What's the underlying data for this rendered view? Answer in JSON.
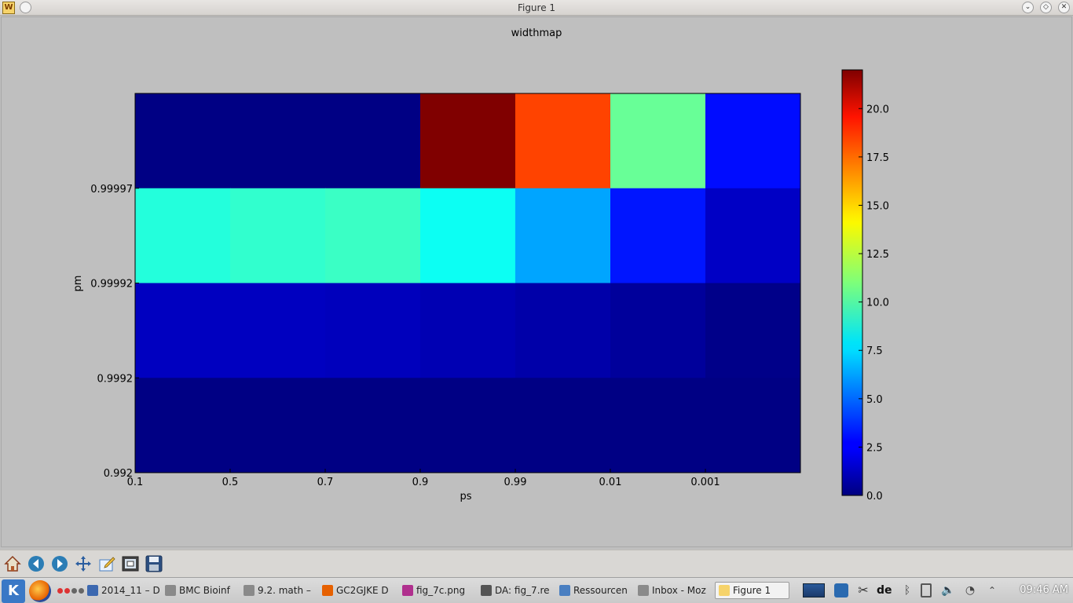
{
  "window": {
    "title": "Figure 1",
    "app_icon_glyph": "W"
  },
  "chart_data": {
    "type": "heatmap",
    "title": "widthmap",
    "xlabel": "ps",
    "ylabel": "pm",
    "x_ticks": [
      "0.1",
      "0.5",
      "0.7",
      "0.9",
      "0.99",
      "0.01",
      "0.001"
    ],
    "y_ticks_bottom_to_top": [
      "0.992",
      "0.9992",
      "0.99992",
      "0.99997"
    ],
    "colorbar": {
      "min": 0.0,
      "max": 22.0,
      "ticks": [
        "0.0",
        "2.5",
        "5.0",
        "7.5",
        "10.0",
        "12.5",
        "15.0",
        "17.5",
        "20.0"
      ],
      "colormap": "jet"
    },
    "rows_top_to_bottom": [
      [
        0.1,
        0.1,
        0.1,
        22.0,
        17.8,
        10.5,
        3.0
      ],
      [
        9.0,
        9.3,
        9.5,
        8.5,
        6.3,
        3.2,
        1.5
      ],
      [
        1.4,
        1.4,
        1.3,
        1.1,
        0.9,
        0.6,
        0.2
      ],
      [
        0.1,
        0.1,
        0.1,
        0.1,
        0.1,
        0.1,
        0.1
      ]
    ]
  },
  "toolbar": {
    "tools": [
      "home-icon",
      "back-arrow-icon",
      "forward-arrow-icon",
      "pan-icon",
      "configure-subplots-icon",
      "zoom-rect-icon",
      "save-icon"
    ]
  },
  "taskbar": {
    "items": [
      {
        "label": "2014_11 – D",
        "icon": "document-icon",
        "color": "#3c68b0"
      },
      {
        "label": "BMC Bioinf",
        "icon": "browser-tab-icon",
        "color": "#8a8a8a"
      },
      {
        "label": "9.2. math –",
        "icon": "browser-tab-icon",
        "color": "#8a8a8a"
      },
      {
        "label": "GC2GJKE D",
        "icon": "firefox-icon",
        "color": "#e66000"
      },
      {
        "label": "fig_7c.png",
        "icon": "image-viewer-icon",
        "color": "#b0308e"
      },
      {
        "label": "DA: fig_7.re",
        "icon": "text-editor-icon",
        "color": "#555555"
      },
      {
        "label": "Ressourcen",
        "icon": "file-manager-icon",
        "color": "#4a7fc1"
      },
      {
        "label": "Inbox - Moz",
        "icon": "thunderbird-icon",
        "color": "#8a8a8a"
      },
      {
        "label": "Figure 1",
        "icon": "matplotlib-icon",
        "color": "#f6d36a"
      }
    ],
    "keyboard_layout": "de",
    "clock": "09:46 AM"
  }
}
